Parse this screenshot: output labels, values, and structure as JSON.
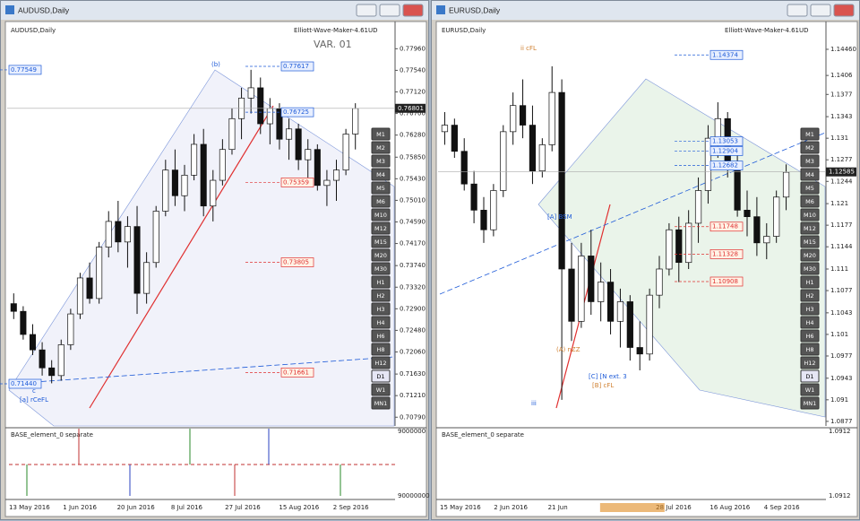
{
  "windows": [
    {
      "title": "AUDUSD,Daily",
      "chart_label": "AUDUSD,Daily",
      "indicator_name": "Elliott-Wave-Maker-4.61UD",
      "annotation": "VAR. 01",
      "ylim": [
        0.7062,
        0.7842
      ],
      "yticks": [
        {
          "value": 0.7796,
          "label": "0.77960"
        },
        {
          "value": 0.7754,
          "label": "0.77540"
        },
        {
          "value": 0.7712,
          "label": "0.77120"
        },
        {
          "value": 0.767,
          "label": "0.76700"
        },
        {
          "value": 0.7628,
          "label": "0.76280"
        },
        {
          "value": 0.7585,
          "label": "0.75850"
        },
        {
          "value": 0.7543,
          "label": "0.75430"
        },
        {
          "value": 0.7501,
          "label": "0.75010"
        },
        {
          "value": 0.7459,
          "label": "0.74590"
        },
        {
          "value": 0.7417,
          "label": "0.74170"
        },
        {
          "value": 0.7374,
          "label": "0.73740"
        },
        {
          "value": 0.7332,
          "label": "0.73320"
        },
        {
          "value": 0.729,
          "label": "0.72900"
        },
        {
          "value": 0.7248,
          "label": "0.72480"
        },
        {
          "value": 0.7206,
          "label": "0.72060"
        },
        {
          "value": 0.7163,
          "label": "0.71630"
        },
        {
          "value": 0.7121,
          "label": "0.71210"
        },
        {
          "value": 0.7079,
          "label": "0.70790"
        }
      ],
      "current_price": 0.76801,
      "levels": [
        {
          "value": 0.77617,
          "color": "#1e5bd8"
        },
        {
          "value": 0.76725,
          "color": "#1e5bd8"
        },
        {
          "value": 0.75359,
          "color": "#e03030"
        },
        {
          "value": 0.73805,
          "color": "#e03030"
        },
        {
          "value": 0.71661,
          "color": "#e03030"
        }
      ],
      "levels_left": [
        {
          "value": 0.77549,
          "color": "#1e5bd8"
        },
        {
          "value": 0.7144,
          "label": "0.71440",
          "color": "#1e5bd8"
        }
      ],
      "wave_labels": [
        "(b)",
        "[a] rCeFL",
        "c"
      ],
      "candles": [
        [
          0.73,
          0.732,
          0.727,
          0.7285
        ],
        [
          0.7285,
          0.7295,
          0.723,
          0.724
        ],
        [
          0.724,
          0.726,
          0.72,
          0.721
        ],
        [
          0.721,
          0.7225,
          0.716,
          0.7175
        ],
        [
          0.7175,
          0.719,
          0.7145,
          0.716
        ],
        [
          0.716,
          0.723,
          0.715,
          0.722
        ],
        [
          0.722,
          0.729,
          0.721,
          0.728
        ],
        [
          0.728,
          0.736,
          0.727,
          0.735
        ],
        [
          0.735,
          0.738,
          0.73,
          0.731
        ],
        [
          0.731,
          0.742,
          0.73,
          0.741
        ],
        [
          0.741,
          0.748,
          0.739,
          0.746
        ],
        [
          0.746,
          0.75,
          0.74,
          0.742
        ],
        [
          0.742,
          0.747,
          0.737,
          0.745
        ],
        [
          0.745,
          0.749,
          0.728,
          0.732
        ],
        [
          0.732,
          0.74,
          0.73,
          0.738
        ],
        [
          0.738,
          0.749,
          0.737,
          0.748
        ],
        [
          0.748,
          0.758,
          0.747,
          0.756
        ],
        [
          0.756,
          0.76,
          0.749,
          0.751
        ],
        [
          0.751,
          0.757,
          0.748,
          0.755
        ],
        [
          0.755,
          0.763,
          0.754,
          0.761
        ],
        [
          0.761,
          0.764,
          0.747,
          0.749
        ],
        [
          0.749,
          0.756,
          0.746,
          0.754
        ],
        [
          0.754,
          0.762,
          0.753,
          0.76
        ],
        [
          0.76,
          0.768,
          0.759,
          0.766
        ],
        [
          0.766,
          0.772,
          0.762,
          0.77
        ],
        [
          0.77,
          0.7755,
          0.767,
          0.772
        ],
        [
          0.772,
          0.774,
          0.763,
          0.765
        ],
        [
          0.765,
          0.77,
          0.761,
          0.768
        ],
        [
          0.768,
          0.769,
          0.76,
          0.762
        ],
        [
          0.762,
          0.766,
          0.758,
          0.764
        ],
        [
          0.764,
          0.765,
          0.756,
          0.758
        ],
        [
          0.758,
          0.762,
          0.754,
          0.76
        ],
        [
          0.76,
          0.761,
          0.752,
          0.753
        ],
        [
          0.753,
          0.756,
          0.749,
          0.754
        ],
        [
          0.754,
          0.758,
          0.75,
          0.756
        ],
        [
          0.756,
          0.764,
          0.755,
          0.763
        ],
        [
          0.763,
          0.769,
          0.76,
          0.768
        ]
      ],
      "subpane": {
        "title": "BASE_element_0 separate",
        "ticks": [
          "9000000",
          "90000000"
        ]
      },
      "dates": [
        "13 May 2016",
        "1 Jun 2016",
        "20 Jun 2016",
        "8 Jul 2016",
        "27 Jul 2016",
        "15 Aug 2016",
        "2 Sep 2016"
      ]
    },
    {
      "title": "EURUSD,Daily",
      "chart_label": "EURUSD,Daily",
      "indicator_name": "Elliott-Wave-Maker-4.61UD",
      "ylim": [
        1.087,
        1.1483
      ],
      "yticks": [
        {
          "value": 1.1446,
          "label": "1.14460"
        },
        1.1406,
        1.1377,
        1.1343,
        1.131,
        1.1277,
        1.1244,
        1.121,
        1.1177,
        1.1144,
        1.111,
        1.1077,
        1.1043,
        1.101,
        1.0977,
        1.0943,
        1.091,
        1.0877
      ],
      "current_price": 1.12585,
      "levels": [
        {
          "value": 1.14374,
          "color": "#1e5bd8"
        },
        {
          "value": 1.13053,
          "color": "#1e5bd8"
        },
        {
          "value": 1.12904,
          "color": "#1e5bd8"
        },
        {
          "value": 1.12682,
          "color": "#1e5bd8"
        },
        {
          "value": 1.11748,
          "color": "#e03030"
        },
        {
          "value": 1.11328,
          "color": "#e03030"
        },
        {
          "value": 1.10908,
          "color": "#e03030"
        }
      ],
      "wave_labels": [
        "ii cFL",
        "[A] BSM",
        "(A) nZZ",
        "[C] [N ext. 3",
        "[B] cFL",
        "iii"
      ],
      "candles": [
        [
          1.132,
          1.135,
          1.13,
          1.133
        ],
        [
          1.133,
          1.134,
          1.128,
          1.129
        ],
        [
          1.129,
          1.131,
          1.123,
          1.124
        ],
        [
          1.124,
          1.126,
          1.118,
          1.12
        ],
        [
          1.12,
          1.122,
          1.115,
          1.117
        ],
        [
          1.117,
          1.124,
          1.116,
          1.123
        ],
        [
          1.123,
          1.133,
          1.122,
          1.132
        ],
        [
          1.132,
          1.138,
          1.13,
          1.136
        ],
        [
          1.136,
          1.14,
          1.131,
          1.133
        ],
        [
          1.133,
          1.136,
          1.124,
          1.126
        ],
        [
          1.126,
          1.131,
          1.125,
          1.13
        ],
        [
          1.13,
          1.142,
          1.129,
          1.138
        ],
        [
          1.138,
          1.14,
          1.091,
          1.111
        ],
        [
          1.111,
          1.115,
          1.1,
          1.103
        ],
        [
          1.103,
          1.115,
          1.102,
          1.113
        ],
        [
          1.113,
          1.117,
          1.104,
          1.106
        ],
        [
          1.106,
          1.112,
          1.103,
          1.109
        ],
        [
          1.109,
          1.111,
          1.101,
          1.103
        ],
        [
          1.103,
          1.108,
          1.099,
          1.106
        ],
        [
          1.106,
          1.107,
          1.097,
          1.099
        ],
        [
          1.099,
          1.103,
          1.0955,
          1.098
        ],
        [
          1.098,
          1.108,
          1.097,
          1.107
        ],
        [
          1.107,
          1.113,
          1.105,
          1.111
        ],
        [
          1.111,
          1.118,
          1.11,
          1.117
        ],
        [
          1.117,
          1.119,
          1.109,
          1.112
        ],
        [
          1.112,
          1.12,
          1.111,
          1.118
        ],
        [
          1.118,
          1.125,
          1.115,
          1.123
        ],
        [
          1.123,
          1.133,
          1.121,
          1.131
        ],
        [
          1.131,
          1.1365,
          1.128,
          1.134
        ],
        [
          1.134,
          1.135,
          1.125,
          1.127
        ],
        [
          1.127,
          1.129,
          1.119,
          1.12
        ],
        [
          1.12,
          1.123,
          1.116,
          1.119
        ],
        [
          1.119,
          1.122,
          1.113,
          1.115
        ],
        [
          1.115,
          1.118,
          1.1125,
          1.116
        ],
        [
          1.116,
          1.123,
          1.115,
          1.122
        ],
        [
          1.122,
          1.127,
          1.12,
          1.1258
        ]
      ],
      "subpane": {
        "title": "BASE_element_0 separate",
        "ticks": [
          "1.0912",
          "1.0912"
        ]
      },
      "dates": [
        "15 May 2016",
        "2 Jun 2016",
        "21 Jun",
        "2016.07.12 10:19",
        "28 Jul 2016",
        "16 Aug 2016",
        "4 Sep 2016"
      ]
    }
  ],
  "timeframes": [
    "M1",
    "M2",
    "M3",
    "M4",
    "M5",
    "M6",
    "M10",
    "M12",
    "M15",
    "M20",
    "M30",
    "H1",
    "H2",
    "H3",
    "H4",
    "H6",
    "H8",
    "H12",
    "D1",
    "W1",
    "MN1"
  ]
}
